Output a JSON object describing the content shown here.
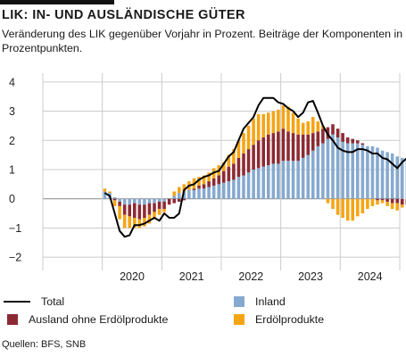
{
  "header": {
    "title": "LIK: IN- UND AUSLÄNDISCHE GÜTER",
    "subtitle": "Veränderung des LIK gegenüber Vorjahr in Prozent. Beiträge der Komponenten in Prozentpunkten."
  },
  "legend": {
    "total": "Total",
    "inland": "Inland",
    "ausland": "Ausland ohne Erdölprodukte",
    "oil": "Erdölprodukte"
  },
  "source": "Quellen: BFS, SNB",
  "colors": {
    "inland": "#86a9cf",
    "ausland": "#8c2a33",
    "oil": "#f5a414",
    "total": "#000000",
    "grid": "#cccccc"
  },
  "chart_data": {
    "type": "bar",
    "stacked": true,
    "x_start": "2020-01",
    "frequency": "monthly",
    "xticks": [
      "2020",
      "2021",
      "2022",
      "2023",
      "2024"
    ],
    "ylim": [
      -2.3,
      4.3
    ],
    "yticks": [
      -2,
      -1,
      0,
      1,
      2,
      3,
      4
    ],
    "grid": true,
    "series": [
      {
        "name": "Inland",
        "values": [
          0.25,
          0.2,
          0.05,
          -0.1,
          -0.2,
          -0.2,
          -0.15,
          -0.2,
          -0.2,
          -0.15,
          -0.15,
          -0.1,
          -0.1,
          0.0,
          0.1,
          0.2,
          0.25,
          0.3,
          0.3,
          0.35,
          0.35,
          0.4,
          0.45,
          0.5,
          0.55,
          0.6,
          0.65,
          0.75,
          0.8,
          0.9,
          1.0,
          1.05,
          1.1,
          1.15,
          1.2,
          1.2,
          1.3,
          1.3,
          1.3,
          1.3,
          1.4,
          1.5,
          1.65,
          1.8,
          1.9,
          2.05,
          2.2,
          2.1,
          1.95,
          1.9,
          1.9,
          1.9,
          1.85,
          1.8,
          1.8,
          1.75,
          1.65,
          1.6,
          1.55,
          1.45,
          1.4,
          1.35,
          1.35,
          1.35,
          1.35,
          1.4,
          1.4,
          1.45,
          1.45
        ]
      },
      {
        "name": "Ausland ohne Erdölprodukte",
        "values": [
          0.0,
          0.0,
          -0.05,
          -0.15,
          -0.35,
          -0.4,
          -0.5,
          -0.5,
          -0.45,
          -0.4,
          -0.3,
          -0.25,
          -0.25,
          -0.2,
          -0.15,
          -0.1,
          -0.05,
          0.0,
          0.05,
          0.1,
          0.15,
          0.2,
          0.25,
          0.3,
          0.4,
          0.5,
          0.55,
          0.65,
          0.75,
          0.8,
          0.85,
          0.95,
          1.0,
          1.05,
          1.05,
          1.1,
          1.1,
          1.0,
          0.95,
          0.9,
          0.8,
          0.7,
          0.6,
          0.5,
          0.5,
          0.4,
          0.35,
          0.3,
          0.3,
          0.2,
          0.15,
          0.1,
          0.05,
          0.0,
          0.0,
          -0.05,
          -0.05,
          -0.1,
          -0.15,
          -0.15,
          -0.2,
          -0.2,
          -0.2,
          -0.2,
          -0.2,
          -0.2,
          -0.2,
          -0.2,
          -0.2
        ]
      },
      {
        "name": "Erdölprodukte",
        "values": [
          0.1,
          0.05,
          -0.2,
          -0.45,
          -0.45,
          -0.4,
          -0.35,
          -0.3,
          -0.3,
          -0.3,
          -0.25,
          -0.2,
          -0.1,
          0.0,
          0.15,
          0.2,
          0.25,
          0.3,
          0.35,
          0.3,
          0.3,
          0.3,
          0.35,
          0.35,
          0.3,
          0.4,
          0.5,
          0.6,
          0.7,
          0.8,
          0.9,
          0.9,
          0.8,
          0.75,
          0.75,
          0.75,
          0.8,
          0.85,
          0.7,
          0.55,
          0.4,
          0.45,
          0.55,
          0.35,
          0.1,
          -0.15,
          -0.35,
          -0.55,
          -0.65,
          -0.75,
          -0.75,
          -0.6,
          -0.5,
          -0.35,
          -0.25,
          -0.15,
          -0.1,
          -0.15,
          -0.2,
          -0.25,
          -0.1,
          0.0,
          0.05,
          0.1,
          0.1,
          0.05,
          0.1,
          0.15,
          0.15
        ]
      },
      {
        "name": "Total",
        "type": "line",
        "values": [
          0.2,
          0.1,
          -0.5,
          -1.1,
          -1.3,
          -1.25,
          -0.9,
          -0.9,
          -0.85,
          -0.75,
          -0.65,
          -0.75,
          -0.5,
          -0.65,
          -0.65,
          -0.5,
          0.3,
          0.45,
          0.5,
          0.65,
          0.75,
          0.8,
          0.9,
          0.95,
          1.2,
          1.45,
          1.6,
          2.0,
          2.4,
          2.6,
          2.8,
          3.2,
          3.45,
          3.45,
          3.45,
          3.3,
          3.25,
          3.1,
          3.0,
          2.8,
          2.95,
          3.3,
          3.35,
          2.95,
          2.5,
          2.2,
          2.0,
          1.75,
          1.65,
          1.6,
          1.6,
          1.7,
          1.7,
          1.65,
          1.55,
          1.55,
          1.4,
          1.35,
          1.2,
          1.05,
          1.25,
          1.4,
          1.4,
          1.35,
          1.3,
          1.3,
          1.3,
          1.45,
          1.45
        ]
      }
    ]
  }
}
